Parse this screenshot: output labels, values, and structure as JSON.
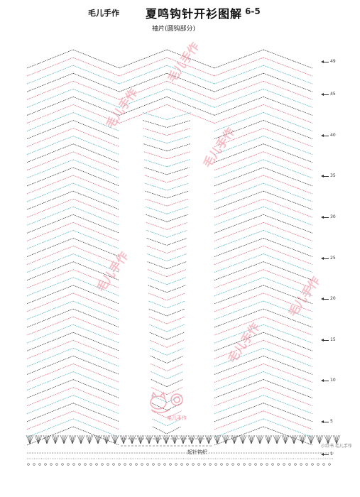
{
  "header": {
    "brand": "毛儿手作",
    "title": "夏鸣钩针开衫图解",
    "version": "6-5",
    "subtitle": "袖片(圆钩部分)"
  },
  "row_markers": [
    "49",
    "45",
    "40",
    "35",
    "30",
    "25",
    "20",
    "15",
    "10",
    "5",
    "1"
  ],
  "center_label": "起针钩织",
  "watermarks": [
    "毛儿手作",
    "毛儿手作",
    "毛儿手作",
    "毛儿手作",
    "毛儿手作",
    "毛儿手作"
  ],
  "logo_text": "毛儿手作",
  "corner_mark": "小红书 毛儿手作",
  "colors": {
    "row_a": "#222222",
    "row_b": "#d9566b",
    "row_c": "#3aa6b8",
    "watermark": "#f08a9a"
  }
}
